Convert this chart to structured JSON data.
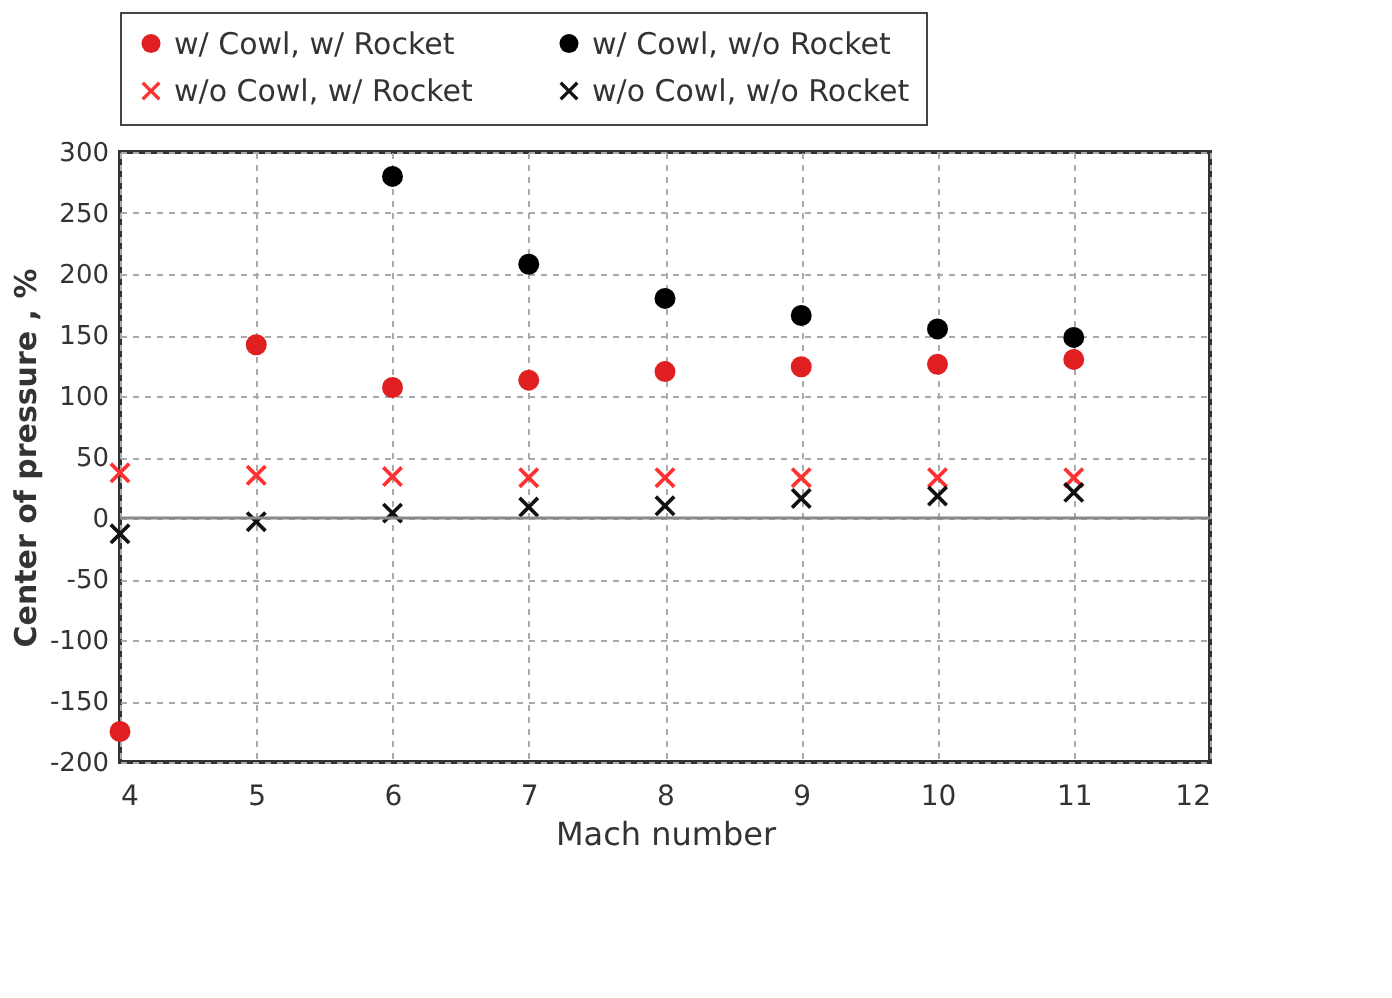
{
  "chart_data": {
    "type": "scatter",
    "xlabel": "Mach number",
    "ylabel": "Center of pressure , %",
    "x": [
      4,
      5,
      6,
      7,
      8,
      9,
      10,
      11
    ],
    "series": [
      {
        "name": "w/ Cowl, w/ Rocket",
        "color": "#e02020",
        "marker": "circle",
        "values": [
          -175,
          142,
          107,
          113,
          120,
          124,
          126,
          130
        ]
      },
      {
        "name": "w/ Cowl, w/o Rocket",
        "color": "#000000",
        "marker": "circle",
        "values": [
          null,
          null,
          280,
          208,
          180,
          166,
          155,
          148
        ]
      },
      {
        "name": "w/o Cowl, w/ Rocket",
        "color": "#ff3030",
        "marker": "cross",
        "values": [
          37,
          35,
          34,
          33,
          33,
          33,
          33,
          33
        ]
      },
      {
        "name": "w/o Cowl, w/o Rocket",
        "color": "#111111",
        "marker": "cross",
        "values": [
          -13,
          -3,
          4,
          9,
          10,
          16,
          18,
          21
        ]
      }
    ],
    "xlim": [
      4,
      12
    ],
    "xticks": [
      4,
      5,
      6,
      7,
      8,
      9,
      10,
      11,
      12
    ],
    "ylim": [
      -200,
      300
    ],
    "yticks": [
      -200,
      -150,
      -100,
      -50,
      0,
      50,
      100,
      150,
      200,
      250,
      300
    ],
    "ref_lines": [
      {
        "axis": "y",
        "value": 0,
        "color": "#888888"
      }
    ],
    "grid": true,
    "legend": "top"
  }
}
